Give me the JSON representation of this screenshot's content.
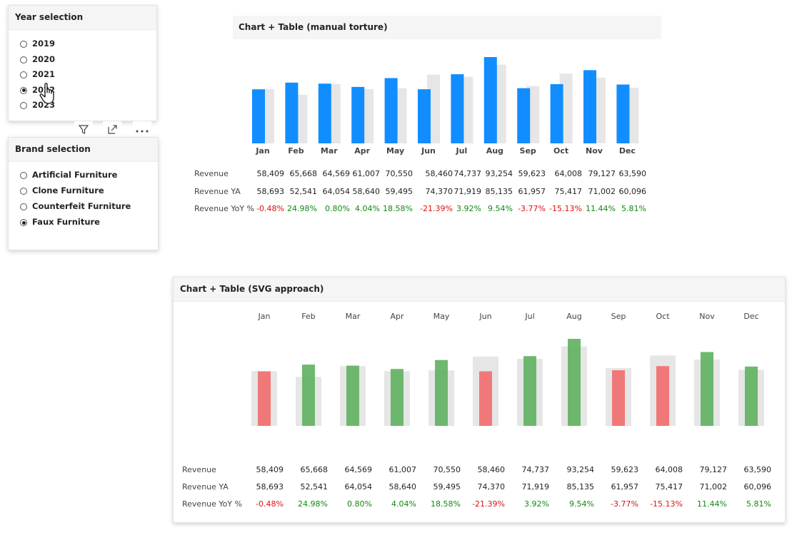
{
  "year_slicer": {
    "title": "Year selection",
    "options": [
      {
        "label": "2019",
        "selected": false
      },
      {
        "label": "2020",
        "selected": false
      },
      {
        "label": "2021",
        "selected": false
      },
      {
        "label": "2022",
        "selected": true
      },
      {
        "label": "2023",
        "selected": false
      }
    ]
  },
  "brand_slicer": {
    "title": "Brand selection",
    "options": [
      {
        "label": "Artificial Furniture",
        "selected": false
      },
      {
        "label": "Clone Furniture",
        "selected": false
      },
      {
        "label": "Counterfeit Furniture",
        "selected": false
      },
      {
        "label": "Faux Furniture",
        "selected": true
      }
    ]
  },
  "visual_header_icons": [
    "filter-icon",
    "focus-mode-icon",
    "more-options-icon"
  ],
  "cursor_icon": "hand-pointer-icon",
  "colors": {
    "revenue_bar": "#118dff",
    "prior_bar": "#e6e6e6",
    "positive": "#118a11",
    "negative": "#e01010",
    "green_bar": "#5fb05f",
    "red_bar": "#f26b6b"
  },
  "chart1": {
    "title": "Chart + Table (manual torture)",
    "row_labels": [
      "Revenue",
      "Revenue YA",
      "Revenue YoY %"
    ]
  },
  "chart2": {
    "title": "Chart + Table (SVG approach)",
    "row_labels": [
      "Revenue",
      "Revenue YA",
      "Revenue YoY %"
    ]
  },
  "table": {
    "months": [
      "Jan",
      "Feb",
      "Mar",
      "Apr",
      "May",
      "Jun",
      "Jul",
      "Aug",
      "Sep",
      "Oct",
      "Nov",
      "Dec"
    ],
    "revenue": [
      "58,409",
      "65,668",
      "64,569",
      "61,007",
      "70,550",
      "58,460",
      "74,737",
      "93,254",
      "59,623",
      "64,008",
      "79,127",
      "63,590"
    ],
    "revenue_ya": [
      "58,693",
      "52,541",
      "64,054",
      "58,640",
      "59,495",
      "74,370",
      "71,919",
      "85,135",
      "61,957",
      "75,417",
      "71,002",
      "60,096"
    ],
    "yoy": [
      "-0.48%",
      "24.98%",
      "0.80%",
      "4.04%",
      "18.58%",
      "-21.39%",
      "3.92%",
      "9.54%",
      "-3.77%",
      "-15.13%",
      "11.44%",
      "5.81%"
    ]
  },
  "chart_data": [
    {
      "type": "bar",
      "title": "Chart + Table (manual torture)",
      "categories": [
        "Jan",
        "Feb",
        "Mar",
        "Apr",
        "May",
        "Jun",
        "Jul",
        "Aug",
        "Sep",
        "Oct",
        "Nov",
        "Dec"
      ],
      "series": [
        {
          "name": "Revenue",
          "values": [
            58409,
            65668,
            64569,
            61007,
            70550,
            58460,
            74737,
            93254,
            59623,
            64008,
            79127,
            63590
          ]
        },
        {
          "name": "Revenue YA",
          "values": [
            58693,
            52541,
            64054,
            58640,
            59495,
            74370,
            71919,
            85135,
            61957,
            75417,
            71002,
            60096
          ]
        }
      ]
    },
    {
      "type": "bar",
      "title": "Chart + Table (SVG approach)",
      "categories": [
        "Jan",
        "Feb",
        "Mar",
        "Apr",
        "May",
        "Jun",
        "Jul",
        "Aug",
        "Sep",
        "Oct",
        "Nov",
        "Dec"
      ],
      "series": [
        {
          "name": "Revenue",
          "values": [
            58409,
            65668,
            64569,
            61007,
            70550,
            58460,
            74737,
            93254,
            59623,
            64008,
            79127,
            63590
          ]
        },
        {
          "name": "Revenue YA",
          "values": [
            58693,
            52541,
            64054,
            58640,
            59495,
            74370,
            71919,
            85135,
            61957,
            75417,
            71002,
            60096
          ]
        }
      ]
    }
  ]
}
